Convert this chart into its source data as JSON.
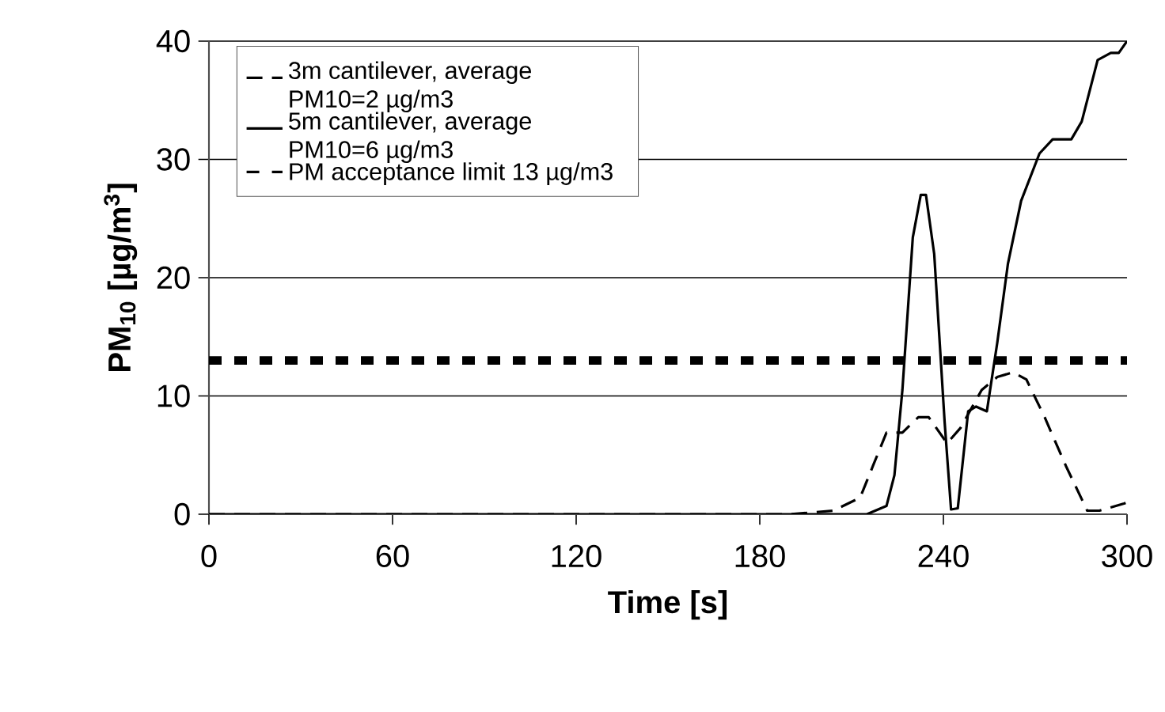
{
  "chart_data": {
    "type": "line",
    "xlabel": "Time [s]",
    "ylabel": "PM$_{10}$ [µg/m$^{3}$]",
    "xlim": [
      0,
      300
    ],
    "xticks": [
      0,
      60,
      120,
      180,
      240,
      300
    ],
    "ylim": [
      0,
      40
    ],
    "yticks": [
      0,
      10,
      20,
      30,
      40
    ],
    "grid": "y",
    "legend": "top left",
    "marker": "none",
    "series": [
      {
        "name": "3m cantilever, average PM10=2 µg/m3",
        "color": "#000000",
        "line_style": "dashed",
        "x": [
          0,
          190,
          204,
          212.8,
          217,
          221.4,
          226.6,
          231.8,
          235.2,
          241.2,
          245.6,
          252.5,
          257.6,
          262.8,
          267.1,
          273.1,
          280,
          287,
          291,
          299,
          300
        ],
        "values": [
          0,
          0,
          0.3,
          1.4,
          4.1,
          6.9,
          6.9,
          8.2,
          8.2,
          6.0,
          7.3,
          10.5,
          11.6,
          12.0,
          11.4,
          8.2,
          4.1,
          0.3,
          0.3,
          0.9,
          1.0
        ]
      },
      {
        "name": "5m cantilever, average PM10=6 µg/m3",
        "color": "#000000",
        "line_style": "solid",
        "x": [
          0,
          215,
          221.4,
          224,
          226.6,
          230,
          232.6,
          234.3,
          237,
          240.4,
          242.5,
          244.7,
          248.1,
          250.7,
          254.2,
          257.6,
          261.1,
          265.4,
          271.4,
          275.7,
          281.8,
          285.2,
          290.4,
          294.7,
          297.3,
          300
        ],
        "values": [
          0,
          0,
          0.7,
          3.3,
          10.5,
          23.4,
          27,
          27,
          22,
          7.8,
          0.4,
          0.5,
          8.7,
          9.1,
          8.7,
          14.5,
          21.2,
          26.5,
          30.5,
          31.7,
          31.7,
          33.2,
          38.4,
          39,
          39,
          40
        ]
      }
    ],
    "ref_lines": [
      {
        "axis": "y",
        "value": 13,
        "label": "PM acceptance limit 13 µg/m3",
        "color": "#000000",
        "line_style": "dotted"
      }
    ]
  }
}
